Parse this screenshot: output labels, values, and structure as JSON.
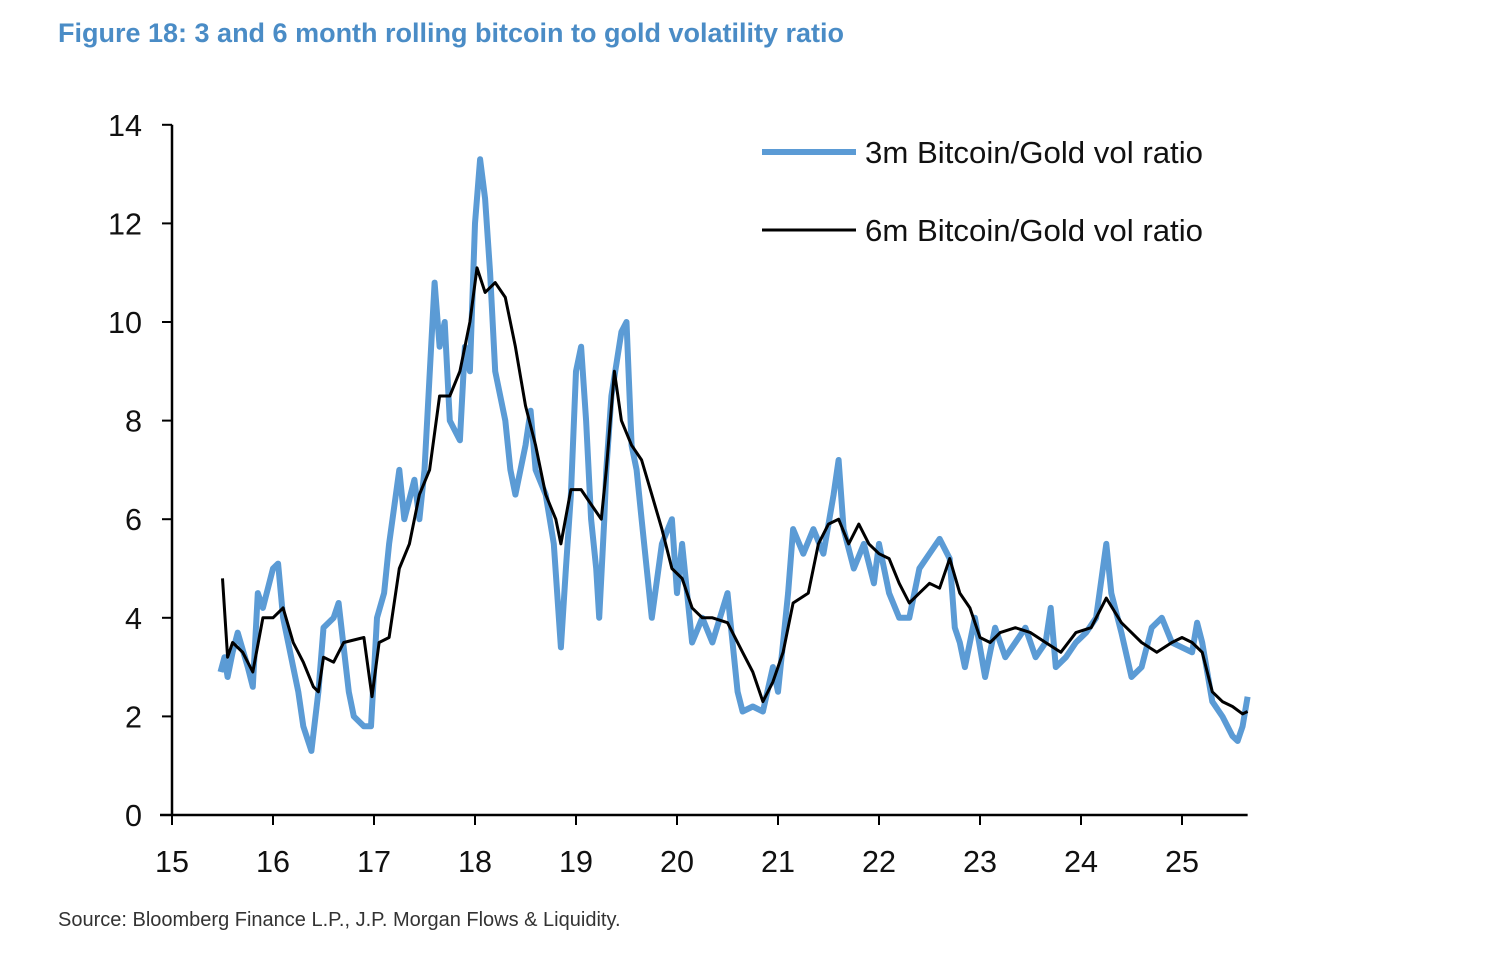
{
  "title": "Figure 18: 3 and 6 month rolling bitcoin to gold volatility ratio",
  "source": "Source: Bloomberg Finance L.P., J.P. Morgan Flows & Liquidity.",
  "chart_data": {
    "type": "line",
    "title": "Figure 18: 3 and 6 month rolling bitcoin to gold volatility ratio",
    "xlabel": "",
    "ylabel": "",
    "xlim": [
      15,
      25.65
    ],
    "ylim": [
      0,
      14
    ],
    "xticks": [
      "15",
      "16",
      "17",
      "18",
      "19",
      "20",
      "21",
      "22",
      "23",
      "24",
      "25"
    ],
    "yticks": [
      "0",
      "2",
      "4",
      "6",
      "8",
      "10",
      "12",
      "14"
    ],
    "grid": false,
    "legend_position": "top-right",
    "series": [
      {
        "name": "3m Bitcoin/Gold vol ratio",
        "color": "#5b9bd5",
        "x": [
          15.48,
          15.52,
          15.55,
          15.6,
          15.65,
          15.75,
          15.8,
          15.85,
          15.9,
          16.0,
          16.05,
          16.1,
          16.2,
          16.25,
          16.3,
          16.38,
          16.45,
          16.5,
          16.6,
          16.65,
          16.75,
          16.8,
          16.9,
          16.97,
          17.03,
          17.1,
          17.15,
          17.25,
          17.3,
          17.4,
          17.45,
          17.5,
          17.6,
          17.65,
          17.7,
          17.75,
          17.85,
          17.9,
          17.95,
          18.0,
          18.05,
          18.1,
          18.15,
          18.2,
          18.3,
          18.35,
          18.4,
          18.5,
          18.55,
          18.6,
          18.7,
          18.78,
          18.85,
          18.9,
          18.95,
          19.0,
          19.05,
          19.1,
          19.15,
          19.2,
          19.23,
          19.28,
          19.3,
          19.35,
          19.45,
          19.5,
          19.55,
          19.6,
          19.65,
          19.7,
          19.75,
          19.85,
          19.95,
          20.0,
          20.05,
          20.15,
          20.25,
          20.35,
          20.5,
          20.6,
          20.65,
          20.75,
          20.85,
          20.95,
          21.0,
          21.05,
          21.1,
          21.15,
          21.25,
          21.35,
          21.45,
          21.55,
          21.6,
          21.65,
          21.75,
          21.85,
          21.95,
          22.0,
          22.1,
          22.2,
          22.3,
          22.4,
          22.5,
          22.6,
          22.7,
          22.75,
          22.8,
          22.85,
          22.95,
          23.05,
          23.15,
          23.25,
          23.35,
          23.45,
          23.55,
          23.65,
          23.7,
          23.75,
          23.85,
          23.95,
          24.05,
          24.15,
          24.25,
          24.3,
          24.4,
          24.5,
          24.6,
          24.7,
          24.8,
          24.9,
          25.0,
          25.1,
          25.15,
          25.2,
          25.3,
          25.4,
          25.5,
          25.55,
          25.6,
          25.65
        ],
        "y": [
          2.9,
          3.2,
          2.8,
          3.3,
          3.7,
          3.0,
          2.6,
          4.5,
          4.2,
          5.0,
          5.1,
          4.0,
          3.0,
          2.5,
          1.8,
          1.3,
          2.5,
          3.8,
          4.0,
          4.3,
          2.5,
          2.0,
          1.8,
          1.8,
          4.0,
          4.5,
          5.5,
          7.0,
          6.0,
          6.8,
          6.0,
          7.0,
          10.8,
          9.5,
          10.0,
          8.0,
          7.6,
          9.5,
          9.0,
          12.0,
          13.3,
          12.5,
          11.0,
          9.0,
          8.0,
          7.0,
          6.5,
          7.5,
          8.2,
          7.0,
          6.5,
          5.5,
          3.4,
          5.0,
          6.5,
          9.0,
          9.5,
          8.0,
          6.0,
          5.0,
          4.0,
          6.0,
          7.0,
          8.5,
          9.8,
          10.0,
          7.5,
          7.0,
          6.0,
          5.0,
          4.0,
          5.5,
          6.0,
          4.5,
          5.5,
          3.5,
          4.0,
          3.5,
          4.5,
          2.5,
          2.1,
          2.2,
          2.1,
          3.0,
          2.5,
          3.5,
          4.5,
          5.8,
          5.3,
          5.8,
          5.3,
          6.5,
          7.2,
          5.8,
          5.0,
          5.5,
          4.7,
          5.5,
          4.5,
          4.0,
          4.0,
          5.0,
          5.3,
          5.6,
          5.2,
          3.8,
          3.5,
          3.0,
          4.0,
          2.8,
          3.8,
          3.2,
          3.5,
          3.8,
          3.2,
          3.5,
          4.2,
          3.0,
          3.2,
          3.5,
          3.7,
          4.0,
          5.5,
          4.5,
          3.7,
          2.8,
          3.0,
          3.8,
          4.0,
          3.5,
          3.4,
          3.3,
          3.9,
          3.5,
          2.3,
          2.0,
          1.6,
          1.5,
          1.8,
          2.4
        ]
      },
      {
        "name": "6m Bitcoin/Gold vol ratio",
        "color": "#000000",
        "x": [
          15.5,
          15.55,
          15.6,
          15.7,
          15.8,
          15.9,
          16.0,
          16.1,
          16.2,
          16.3,
          16.4,
          16.45,
          16.5,
          16.6,
          16.7,
          16.9,
          16.98,
          17.05,
          17.15,
          17.25,
          17.35,
          17.45,
          17.55,
          17.65,
          17.75,
          17.85,
          17.95,
          18.02,
          18.1,
          18.2,
          18.3,
          18.4,
          18.5,
          18.6,
          18.7,
          18.8,
          18.85,
          18.95,
          19.05,
          19.15,
          19.25,
          19.3,
          19.38,
          19.45,
          19.55,
          19.65,
          19.75,
          19.85,
          19.95,
          20.05,
          20.15,
          20.25,
          20.35,
          20.5,
          20.65,
          20.75,
          20.85,
          20.95,
          21.05,
          21.15,
          21.3,
          21.4,
          21.5,
          21.6,
          21.7,
          21.8,
          21.9,
          22.0,
          22.1,
          22.2,
          22.3,
          22.4,
          22.5,
          22.6,
          22.7,
          22.8,
          22.9,
          23.0,
          23.1,
          23.2,
          23.35,
          23.5,
          23.65,
          23.8,
          23.95,
          24.1,
          24.25,
          24.4,
          24.5,
          24.6,
          24.75,
          24.9,
          25.0,
          25.1,
          25.2,
          25.3,
          25.4,
          25.5,
          25.6,
          25.65
        ],
        "y": [
          4.8,
          3.2,
          3.5,
          3.3,
          2.9,
          4.0,
          4.0,
          4.2,
          3.5,
          3.1,
          2.6,
          2.5,
          3.2,
          3.1,
          3.5,
          3.6,
          2.4,
          3.5,
          3.6,
          5.0,
          5.5,
          6.5,
          7.0,
          8.5,
          8.5,
          9.0,
          10.0,
          11.1,
          10.6,
          10.8,
          10.5,
          9.5,
          8.3,
          7.5,
          6.5,
          6.0,
          5.5,
          6.6,
          6.6,
          6.3,
          6.0,
          7.0,
          9.0,
          8.0,
          7.5,
          7.2,
          6.5,
          5.8,
          5.0,
          4.8,
          4.2,
          4.0,
          4.0,
          3.9,
          3.3,
          2.9,
          2.3,
          2.7,
          3.3,
          4.3,
          4.5,
          5.5,
          5.9,
          6.0,
          5.5,
          5.9,
          5.5,
          5.3,
          5.2,
          4.7,
          4.3,
          4.5,
          4.7,
          4.6,
          5.2,
          4.5,
          4.2,
          3.6,
          3.5,
          3.7,
          3.8,
          3.7,
          3.5,
          3.3,
          3.7,
          3.8,
          4.4,
          3.9,
          3.7,
          3.5,
          3.3,
          3.5,
          3.6,
          3.5,
          3.3,
          2.5,
          2.3,
          2.2,
          2.05,
          2.1
        ]
      }
    ]
  }
}
